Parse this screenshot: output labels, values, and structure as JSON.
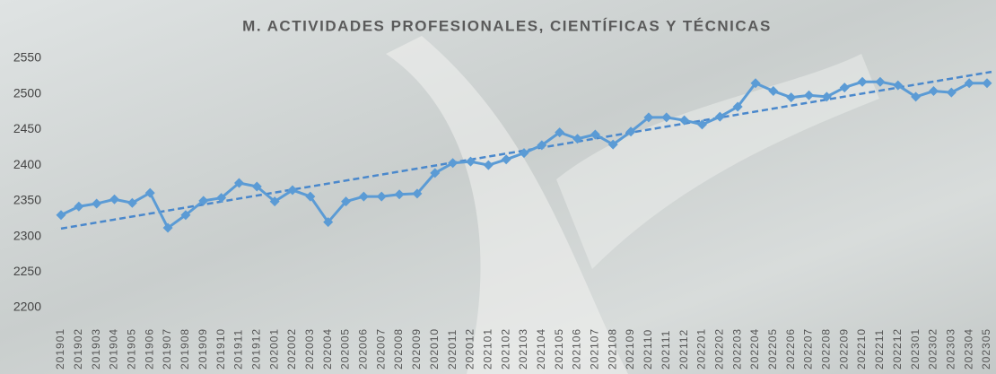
{
  "chart_data": {
    "type": "line",
    "title": "M. ACTIVIDADES PROFESIONALES, CIENTÍFICAS Y TÉCNICAS",
    "categories": [
      "201901",
      "201902",
      "201903",
      "201904",
      "201905",
      "201906",
      "201907",
      "201908",
      "201909",
      "201910",
      "201911",
      "201912",
      "202001",
      "202002",
      "202003",
      "202004",
      "202005",
      "202006",
      "202007",
      "202008",
      "202009",
      "202010",
      "202011",
      "202012",
      "202101",
      "202102",
      "202103",
      "202104",
      "202105",
      "202106",
      "202107",
      "202108",
      "202109",
      "202110",
      "202111",
      "202112",
      "202201",
      "202202",
      "202203",
      "202204",
      "202205",
      "202206",
      "202207",
      "202208",
      "202209",
      "202210",
      "202211",
      "202212",
      "202301",
      "202302",
      "202303",
      "202304",
      "202305"
    ],
    "series": [
      {
        "color": "#5b9bd5",
        "values": [
          2330,
          2342,
          2346,
          2352,
          2347,
          2361,
          2312,
          2330,
          2350,
          2354,
          2375,
          2370,
          2349,
          2365,
          2356,
          2320,
          2349,
          2356,
          2356,
          2359,
          2360,
          2389,
          2403,
          2405,
          2400,
          2408,
          2417,
          2428,
          2446,
          2437,
          2443,
          2429,
          2447,
          2467,
          2467,
          2463,
          2457,
          2468,
          2482,
          2515,
          2504,
          2495,
          2498,
          2496,
          2509,
          2517,
          2517,
          2512,
          2496,
          2504,
          2502,
          2515,
          2515
        ]
      }
    ],
    "trendline": {
      "color": "#4a88cc",
      "start": 2311,
      "end": 2531
    },
    "ylim": [
      2200,
      2550
    ],
    "yticks": [
      2200,
      2250,
      2300,
      2350,
      2400,
      2450,
      2500,
      2550
    ],
    "grid": false
  }
}
